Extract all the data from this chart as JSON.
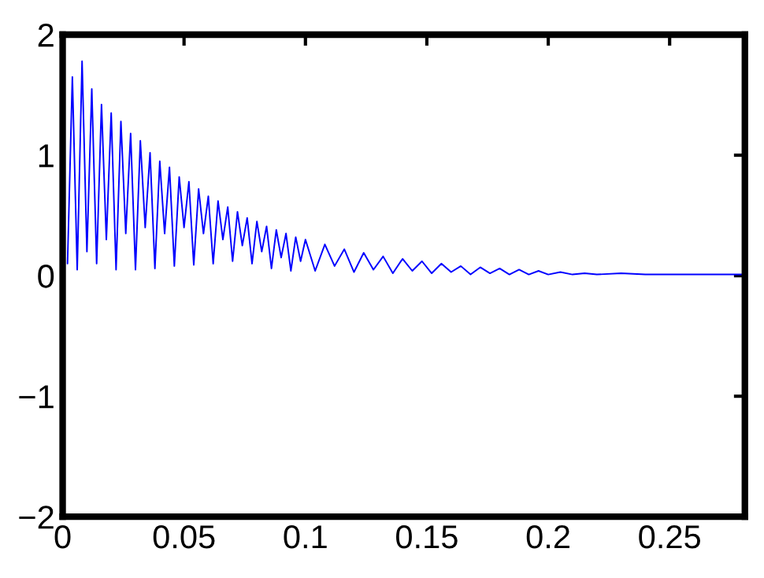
{
  "chart_data": {
    "type": "line",
    "x": [
      0.002,
      0.004,
      0.006,
      0.008,
      0.01,
      0.012,
      0.014,
      0.016,
      0.018,
      0.02,
      0.022,
      0.024,
      0.026,
      0.028,
      0.03,
      0.032,
      0.034,
      0.036,
      0.038,
      0.04,
      0.042,
      0.044,
      0.046,
      0.048,
      0.05,
      0.052,
      0.054,
      0.056,
      0.058,
      0.06,
      0.062,
      0.064,
      0.066,
      0.068,
      0.07,
      0.072,
      0.074,
      0.076,
      0.078,
      0.08,
      0.082,
      0.084,
      0.086,
      0.088,
      0.09,
      0.092,
      0.094,
      0.096,
      0.098,
      0.1,
      0.104,
      0.108,
      0.112,
      0.116,
      0.12,
      0.124,
      0.128,
      0.132,
      0.136,
      0.14,
      0.144,
      0.148,
      0.152,
      0.156,
      0.16,
      0.164,
      0.168,
      0.172,
      0.176,
      0.18,
      0.184,
      0.188,
      0.192,
      0.196,
      0.2,
      0.205,
      0.21,
      0.215,
      0.22,
      0.23,
      0.24,
      0.25,
      0.26,
      0.27,
      0.28
    ],
    "series": [
      {
        "color": "#0000ff",
        "values": [
          0.1,
          1.65,
          0.05,
          1.78,
          0.2,
          1.55,
          0.1,
          1.42,
          0.3,
          1.35,
          0.05,
          1.28,
          0.35,
          1.18,
          0.05,
          1.12,
          0.4,
          1.02,
          0.06,
          0.95,
          0.35,
          0.9,
          0.08,
          0.82,
          0.4,
          0.78,
          0.09,
          0.72,
          0.35,
          0.66,
          0.1,
          0.62,
          0.3,
          0.57,
          0.12,
          0.53,
          0.25,
          0.48,
          0.1,
          0.45,
          0.2,
          0.41,
          0.06,
          0.38,
          0.15,
          0.35,
          0.04,
          0.32,
          0.12,
          0.3,
          0.04,
          0.26,
          0.08,
          0.22,
          0.03,
          0.19,
          0.05,
          0.16,
          0.02,
          0.14,
          0.04,
          0.12,
          0.02,
          0.1,
          0.03,
          0.08,
          0.01,
          0.07,
          0.02,
          0.06,
          0.01,
          0.05,
          0.01,
          0.04,
          0.01,
          0.03,
          0.01,
          0.02,
          0.01,
          0.02,
          0.01,
          0.01,
          0.01,
          0.01,
          0.01
        ]
      }
    ],
    "xlim": [
      0,
      0.281
    ],
    "ylim": [
      -2,
      2
    ],
    "xticks": [
      0,
      0.05,
      0.1,
      0.15,
      0.2,
      0.25
    ],
    "yticks": [
      -2,
      -1,
      0,
      1,
      2
    ],
    "grid": false,
    "marker": "none",
    "line_style": "solid"
  }
}
